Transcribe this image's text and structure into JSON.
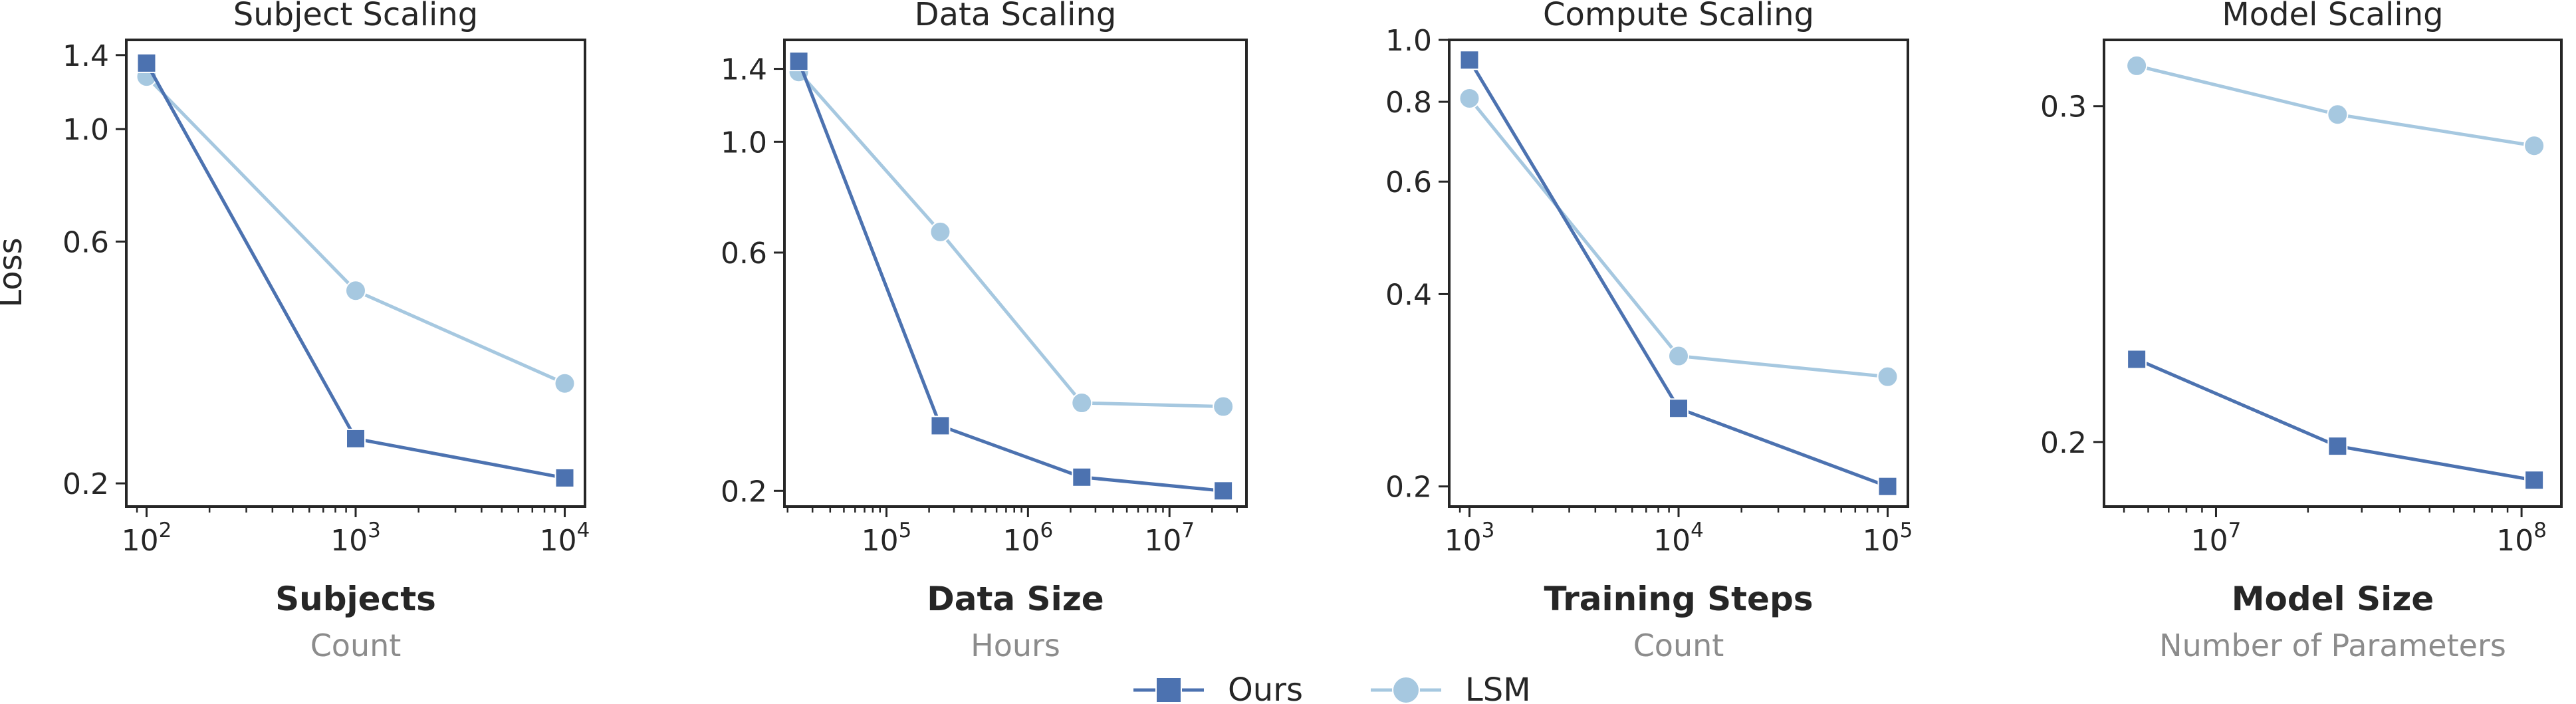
{
  "figure": {
    "ylabel": "Loss",
    "legend": {
      "placement": "bottom-center",
      "entries": [
        {
          "name": "Ours",
          "marker": "square-marker-icon"
        },
        {
          "name": "LSM",
          "marker": "circle-marker-icon"
        }
      ]
    },
    "colors": {
      "Ours": "#4c72b0",
      "LSM": "#a6c8e0",
      "axis": "#262626",
      "sublabel": "#8c8c8c"
    }
  },
  "chart_data": [
    {
      "type": "line",
      "title": "Subject Scaling",
      "xlabel": "Subjects",
      "xsublabel": "Count",
      "ylabel": "Loss",
      "xscale": "log",
      "yscale": "log",
      "xlim": [
        80,
        12500
      ],
      "ylim": [
        0.18,
        1.5
      ],
      "xticks": [
        {
          "value": 100,
          "base": "10",
          "exp": "2"
        },
        {
          "value": 1000,
          "base": "10",
          "exp": "3"
        },
        {
          "value": 10000,
          "base": "10",
          "exp": "4"
        }
      ],
      "yticks": [
        {
          "value": 0.2,
          "label": "0.2"
        },
        {
          "value": 0.6,
          "label": "0.6"
        },
        {
          "value": 1.0,
          "label": "1.0"
        },
        {
          "value": 1.4,
          "label": "1.4"
        }
      ],
      "grid": false,
      "series": [
        {
          "name": "Ours",
          "marker": "square",
          "x": [
            100,
            1000,
            10000
          ],
          "y": [
            1.35,
            0.245,
            0.205
          ]
        },
        {
          "name": "LSM",
          "marker": "circle",
          "x": [
            100,
            1000,
            10000
          ],
          "y": [
            1.27,
            0.48,
            0.315
          ]
        }
      ]
    },
    {
      "type": "line",
      "title": "Data Scaling",
      "xlabel": "Data Size",
      "xsublabel": "Hours",
      "xscale": "log",
      "yscale": "log",
      "xlim": [
        19000,
        35000000
      ],
      "ylim": [
        0.186,
        1.6
      ],
      "xticks": [
        {
          "value": 100000,
          "base": "10",
          "exp": "5"
        },
        {
          "value": 1000000,
          "base": "10",
          "exp": "6"
        },
        {
          "value": 10000000,
          "base": "10",
          "exp": "7"
        }
      ],
      "yticks": [
        {
          "value": 0.2,
          "label": "0.2"
        },
        {
          "value": 0.6,
          "label": "0.6"
        },
        {
          "value": 1.0,
          "label": "1.0"
        },
        {
          "value": 1.4,
          "label": "1.4"
        }
      ],
      "grid": false,
      "series": [
        {
          "name": "Ours",
          "marker": "square",
          "x": [
            24000,
            240000,
            2400000,
            24000000
          ],
          "y": [
            1.45,
            0.27,
            0.213,
            0.2
          ]
        },
        {
          "name": "LSM",
          "marker": "circle",
          "x": [
            24000,
            240000,
            2400000,
            24000000
          ],
          "y": [
            1.38,
            0.66,
            0.3,
            0.295
          ]
        }
      ]
    },
    {
      "type": "line",
      "title": "Compute Scaling",
      "xlabel": "Training Steps",
      "xsublabel": "Count",
      "xscale": "log",
      "yscale": "log",
      "xlim": [
        800,
        125000
      ],
      "ylim": [
        0.186,
        1.0
      ],
      "xticks": [
        {
          "value": 1000,
          "base": "10",
          "exp": "3"
        },
        {
          "value": 10000,
          "base": "10",
          "exp": "4"
        },
        {
          "value": 100000,
          "base": "10",
          "exp": "5"
        }
      ],
      "yticks": [
        {
          "value": 0.2,
          "label": "0.2"
        },
        {
          "value": 0.4,
          "label": "0.4"
        },
        {
          "value": 0.6,
          "label": "0.6"
        },
        {
          "value": 0.8,
          "label": "0.8"
        },
        {
          "value": 1.0,
          "label": "1.0"
        }
      ],
      "grid": false,
      "series": [
        {
          "name": "Ours",
          "marker": "square",
          "x": [
            1000,
            10000,
            100000
          ],
          "y": [
            0.93,
            0.265,
            0.2
          ]
        },
        {
          "name": "LSM",
          "marker": "circle",
          "x": [
            1000,
            10000,
            100000
          ],
          "y": [
            0.81,
            0.32,
            0.297
          ]
        }
      ]
    },
    {
      "type": "line",
      "title": "Model Scaling",
      "xlabel": "Model Size",
      "xsublabel": "Number of Parameters",
      "xscale": "log",
      "yscale": "log",
      "xlim": [
        4300000,
        135000000
      ],
      "ylim": [
        0.185,
        0.325
      ],
      "xticks": [
        {
          "value": 10000000,
          "base": "10",
          "exp": "7"
        },
        {
          "value": 100000000,
          "base": "10",
          "exp": "8"
        }
      ],
      "yticks": [
        {
          "value": 0.2,
          "label": "0.2"
        },
        {
          "value": 0.3,
          "label": "0.3"
        }
      ],
      "grid": false,
      "series": [
        {
          "name": "Ours",
          "marker": "square",
          "x": [
            5500000,
            25000000,
            110000000
          ],
          "y": [
            0.221,
            0.199,
            0.191
          ]
        },
        {
          "name": "LSM",
          "marker": "circle",
          "x": [
            5500000,
            25000000,
            110000000
          ],
          "y": [
            0.315,
            0.297,
            0.286
          ]
        }
      ]
    }
  ]
}
